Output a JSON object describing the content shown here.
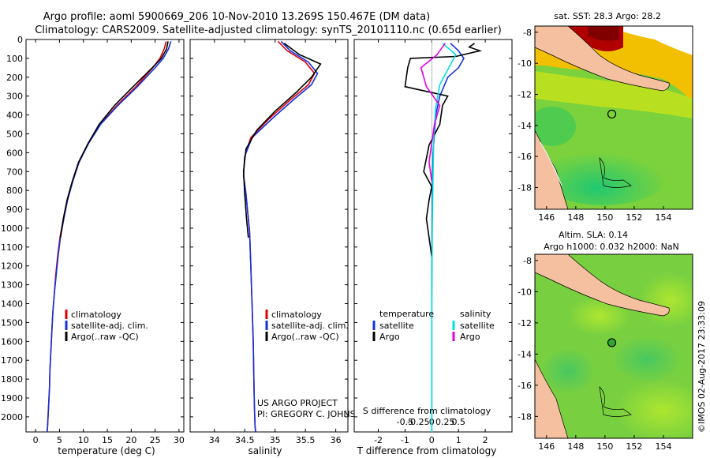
{
  "header": {
    "line1": "Argo profile: aoml 5900669_206 10-Nov-2010 13.269S 150.467E (DM data)",
    "line2": "Climatology: CARS2009. Satellite-adjusted climatology: synTS_20101110.nc (0.65d earlier)"
  },
  "colors": {
    "climatology": "#e00000",
    "satellite": "#1030e0",
    "argo": "#000000",
    "argo_salinity": "#e000e0",
    "satellite_salinity": "#00e0e0"
  },
  "chart_data": [
    {
      "type": "line",
      "panel": "temperature",
      "xlabel": "temperature (deg C)",
      "ylabel": "",
      "xlim": [
        -2,
        31
      ],
      "ylim": [
        2080,
        0
      ],
      "xticks": [
        0,
        5,
        10,
        15,
        20,
        25,
        30
      ],
      "xtick_labels": [
        "0",
        "5",
        "10",
        "15",
        "20",
        "25",
        "30"
      ],
      "yticks": [
        0,
        100,
        200,
        300,
        400,
        500,
        600,
        700,
        800,
        900,
        1000,
        1100,
        1200,
        1300,
        1400,
        1500,
        1600,
        1700,
        1800,
        1900,
        2000
      ],
      "ytick_labels": [
        "0",
        "100",
        "200",
        "300",
        "400",
        "500",
        "600",
        "700",
        "800",
        "900",
        "1000",
        "1100",
        "1200",
        "1300",
        "1400",
        "1500",
        "1600",
        "1700",
        "1800",
        "1900",
        "2000"
      ],
      "legend": [
        "climatology",
        "satellite-adj. clim.",
        "Argo(..raw -QC)"
      ],
      "series": [
        {
          "name": "climatology",
          "color_key": "climatology",
          "x": [
            27.3,
            26.9,
            26.0,
            24.5,
            21.0,
            17.0,
            13.5,
            11.0,
            9.0,
            7.7,
            6.6,
            5.8,
            5.1,
            4.6,
            4.2,
            3.9,
            3.6,
            3.4,
            3.2,
            3.0,
            2.9,
            2.7,
            2.6,
            2.5,
            2.4
          ],
          "y": [
            10,
            50,
            100,
            150,
            250,
            350,
            450,
            550,
            650,
            750,
            850,
            950,
            1050,
            1150,
            1250,
            1350,
            1450,
            1550,
            1650,
            1750,
            1850,
            1950,
            2000,
            2050,
            2080
          ]
        },
        {
          "name": "satellite-adj. clim.",
          "color_key": "satellite",
          "x": [
            28.3,
            27.8,
            26.7,
            25.0,
            21.3,
            17.2,
            13.6,
            11.1,
            9.1,
            7.8,
            6.7,
            5.9,
            5.2,
            4.7,
            4.3,
            3.9,
            3.6,
            3.4,
            3.2,
            3.0,
            2.9,
            2.7,
            2.6,
            2.5,
            2.4
          ],
          "y": [
            10,
            50,
            100,
            150,
            250,
            350,
            450,
            550,
            650,
            750,
            850,
            950,
            1050,
            1150,
            1250,
            1350,
            1450,
            1550,
            1650,
            1750,
            1850,
            1950,
            2000,
            2050,
            2080
          ]
        },
        {
          "name": "Argo(..raw -QC)",
          "color_key": "argo",
          "x": [
            27.7,
            27.4,
            26.3,
            24.4,
            20.4,
            16.5,
            13.3,
            11.0,
            9.0,
            7.7,
            6.6,
            5.8,
            5.2
          ],
          "y": [
            10,
            50,
            100,
            150,
            250,
            350,
            450,
            550,
            650,
            750,
            850,
            950,
            1050
          ]
        }
      ]
    },
    {
      "type": "line",
      "panel": "salinity",
      "xlabel": "salinity",
      "xlim": [
        33.6,
        36.2
      ],
      "ylim": [
        2080,
        0
      ],
      "xticks": [
        34,
        34.5,
        35,
        35.5,
        36
      ],
      "xtick_labels": [
        "34",
        "34.5",
        "35",
        "35.5",
        "36"
      ],
      "legend": [
        "climatology",
        "satellite-adj. clim.",
        "Argo(..raw -QC)"
      ],
      "annotation": [
        "US ARGO PROJECT",
        "PI: GREGORY C. JOHNSON"
      ],
      "series": [
        {
          "name": "climatology",
          "color_key": "climatology",
          "x": [
            35.05,
            35.2,
            35.5,
            35.65,
            35.55,
            35.25,
            34.9,
            34.6,
            34.5,
            34.48,
            34.52,
            34.55,
            34.58,
            34.6,
            34.62,
            34.64,
            34.65,
            34.66,
            34.67,
            34.68
          ],
          "y": [
            10,
            60,
            120,
            180,
            240,
            320,
            420,
            520,
            620,
            720,
            820,
            920,
            1020,
            1200,
            1400,
            1600,
            1800,
            1950,
            2050,
            2080
          ]
        },
        {
          "name": "satellite-adj. clim.",
          "color_key": "satellite",
          "x": [
            35.1,
            35.25,
            35.55,
            35.7,
            35.6,
            35.3,
            34.95,
            34.62,
            34.5,
            34.48,
            34.52,
            34.55,
            34.58,
            34.6,
            34.62,
            34.64,
            34.65,
            34.66,
            34.67,
            34.68
          ],
          "y": [
            10,
            60,
            120,
            180,
            240,
            320,
            420,
            520,
            620,
            720,
            820,
            920,
            1020,
            1200,
            1400,
            1600,
            1800,
            1950,
            2050,
            2080
          ]
        },
        {
          "name": "Argo(..raw -QC)",
          "color_key": "argo",
          "x": [
            35.15,
            35.4,
            35.75,
            35.6,
            35.35,
            35.0,
            34.7,
            34.52,
            34.48,
            34.5,
            34.53,
            34.56
          ],
          "y": [
            20,
            80,
            130,
            200,
            280,
            380,
            480,
            580,
            700,
            820,
            950,
            1050
          ]
        }
      ]
    },
    {
      "type": "line",
      "panel": "difference",
      "xlabel": "T difference from climatology",
      "xlabel_top": "S difference from climatology",
      "xlim": [
        -2.9,
        3.0
      ],
      "ylim": [
        2080,
        0
      ],
      "xticks": [
        -2,
        -1,
        0,
        1,
        2
      ],
      "xtick_labels": [
        "-2",
        "-1",
        "0",
        "1",
        "2"
      ],
      "sticks": [
        -1.0,
        -0.5,
        0,
        0.5,
        1.0
      ],
      "stick_labels": [
        "-0.5",
        "-0.25",
        "0",
        "0.25",
        "0.5"
      ],
      "legend_temperature": {
        "title": "temperature",
        "items": [
          "satellite",
          "Argo"
        ]
      },
      "legend_salinity": {
        "title": "salinity",
        "items": [
          "satellite",
          "Argo"
        ]
      },
      "series": [
        {
          "name": "T satellite",
          "color_key": "satellite",
          "x": [
            0.7,
            1.0,
            1.2,
            1.0,
            0.6,
            0.3,
            0.15,
            0.1,
            0.05,
            0.02,
            0.01,
            0.0,
            0.0,
            0.0
          ],
          "y": [
            20,
            60,
            100,
            150,
            200,
            300,
            400,
            500,
            600,
            800,
            1000,
            1400,
            1800,
            2080
          ]
        },
        {
          "name": "T Argo",
          "color_key": "argo",
          "x": [
            1.6,
            1.4,
            1.8,
            0.9,
            -0.8,
            -0.9,
            -1.0,
            0.6,
            0.4,
            0.3,
            -0.1,
            -0.3,
            0.0,
            -0.1,
            -0.2,
            -0.1,
            0.0
          ],
          "y": [
            20,
            40,
            60,
            90,
            100,
            150,
            250,
            300,
            350,
            450,
            560,
            700,
            780,
            850,
            950,
            1050,
            1150
          ]
        },
        {
          "name": "S satellite",
          "color_key": "satellite_salinity",
          "x": [
            0.4,
            0.9,
            0.6,
            0.3,
            0.15,
            0.08,
            0.05,
            0.02,
            0.0,
            0.0,
            0.0
          ],
          "y": [
            20,
            80,
            160,
            240,
            360,
            500,
            700,
            1000,
            1400,
            1800,
            2080
          ]
        },
        {
          "name": "S Argo",
          "color_key": "argo_salinity",
          "x": [
            0.5,
            0.2,
            -0.4,
            -0.2,
            0.3,
            0.1,
            0.0,
            -0.1,
            0.0
          ],
          "y": [
            20,
            80,
            150,
            250,
            350,
            450,
            550,
            650,
            750
          ]
        }
      ]
    },
    {
      "type": "heatmap",
      "panel": "sst_map",
      "title": "sat. SST: 28.3 Argo: 28.2",
      "xticks": [
        146,
        148,
        150,
        152,
        154
      ],
      "xtick_labels": [
        "146",
        "148",
        "150",
        "152",
        "154"
      ],
      "yticks": [
        -8,
        -10,
        -12,
        -14,
        -16,
        -18
      ],
      "ytick_labels": [
        "-8",
        "-10",
        "-12",
        "-14",
        "-16",
        "-18"
      ],
      "xlim": [
        145.2,
        156.0
      ],
      "ylim": [
        -19.4,
        -7.6
      ],
      "float_position": [
        150.467,
        -13.269
      ]
    },
    {
      "type": "heatmap",
      "panel": "sla_map",
      "title": "Altim. SLA: 0.14",
      "subtitle": "Argo h1000: 0.032 h2000: NaN",
      "xticks": [
        146,
        148,
        150,
        152,
        154
      ],
      "xtick_labels": [
        "146",
        "148",
        "150",
        "152",
        "154"
      ],
      "yticks": [
        -8,
        -10,
        -12,
        -14,
        -16,
        -18
      ],
      "ytick_labels": [
        "-8",
        "-10",
        "-12",
        "-14",
        "-16",
        "-18"
      ],
      "xlim": [
        145.2,
        156.0
      ],
      "ylim": [
        -19.4,
        -7.6
      ],
      "float_position": [
        150.467,
        -13.269
      ]
    }
  ],
  "footer": {
    "stamp": "©IMOS 02-Aug-2017 23:33:09"
  }
}
